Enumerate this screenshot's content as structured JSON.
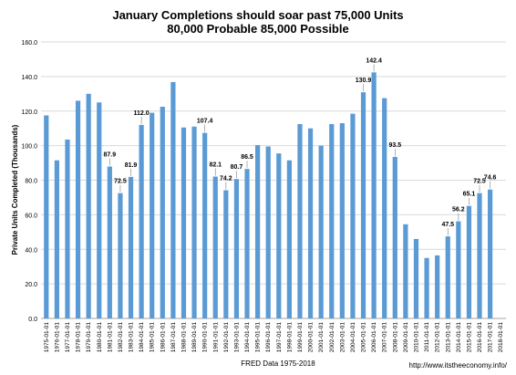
{
  "chart_data": {
    "type": "bar",
    "title": "January Completions should soar past 75,000 Units",
    "subtitle": "80,000 Probable 85,000 Possible",
    "ylabel": "Private Units Completed (Thousands)",
    "xlabel": "FRED Data 1975-2018",
    "source_url": "http://www.itstheeconomy.info/",
    "ylim": [
      0,
      160
    ],
    "yticks": [
      "0.0",
      "20.0",
      "40.0",
      "60.0",
      "80.0",
      "100.0",
      "120.0",
      "140.0",
      "160.0"
    ],
    "grid": true,
    "bar_color": "#5b9bd5",
    "categories": [
      "1975-01-01",
      "1976-01-01",
      "1977-01-01",
      "1978-01-01",
      "1979-01-01",
      "1980-01-01",
      "1981-01-01",
      "1982-01-01",
      "1983-01-01",
      "1984-01-01",
      "1985-01-01",
      "1986-01-01",
      "1987-01-01",
      "1988-01-01",
      "1989-01-01",
      "1990-01-01",
      "1991-01-01",
      "1992-01-01",
      "1993-01-01",
      "1994-01-01",
      "1995-01-01",
      "1996-01-01",
      "1997-01-01",
      "1998-01-01",
      "1999-01-01",
      "2000-01-01",
      "2001-01-01",
      "2002-01-01",
      "2003-01-01",
      "2004-01-01",
      "2005-01-01",
      "2006-01-01",
      "2007-01-01",
      "2008-01-01",
      "2009-01-01",
      "2010-01-01",
      "2011-01-01",
      "2012-01-01",
      "2013-01-01",
      "2014-01-01",
      "2015-01-01",
      "2016-01-01",
      "2017-01-01",
      "2018-01-01"
    ],
    "values": [
      117.5,
      91.5,
      103.5,
      126.0,
      130.0,
      125.0,
      87.9,
      72.5,
      81.9,
      112.0,
      119.0,
      122.5,
      136.8,
      110.5,
      111.0,
      107.4,
      82.1,
      74.2,
      80.7,
      86.5,
      100.3,
      99.5,
      95.5,
      91.5,
      112.5,
      110.0,
      100.0,
      112.5,
      113.0,
      118.5,
      130.9,
      142.4,
      127.5,
      93.5,
      54.5,
      46.0,
      35.0,
      36.5,
      47.5,
      56.2,
      65.1,
      72.5,
      74.6,
      null
    ],
    "data_labels": [
      {
        "index": 6,
        "text": "87.9"
      },
      {
        "index": 7,
        "text": "72.5"
      },
      {
        "index": 8,
        "text": "81.9"
      },
      {
        "index": 9,
        "text": "112.0"
      },
      {
        "index": 15,
        "text": "107.4"
      },
      {
        "index": 16,
        "text": "82.1"
      },
      {
        "index": 17,
        "text": "74.2"
      },
      {
        "index": 18,
        "text": "80.7"
      },
      {
        "index": 19,
        "text": "86.5"
      },
      {
        "index": 30,
        "text": "130.9"
      },
      {
        "index": 31,
        "text": "142.4"
      },
      {
        "index": 33,
        "text": "93.5"
      },
      {
        "index": 38,
        "text": "47.5"
      },
      {
        "index": 39,
        "text": "56.2"
      },
      {
        "index": 40,
        "text": "65.1"
      },
      {
        "index": 41,
        "text": "72.5"
      },
      {
        "index": 42,
        "text": "74.6"
      }
    ]
  }
}
